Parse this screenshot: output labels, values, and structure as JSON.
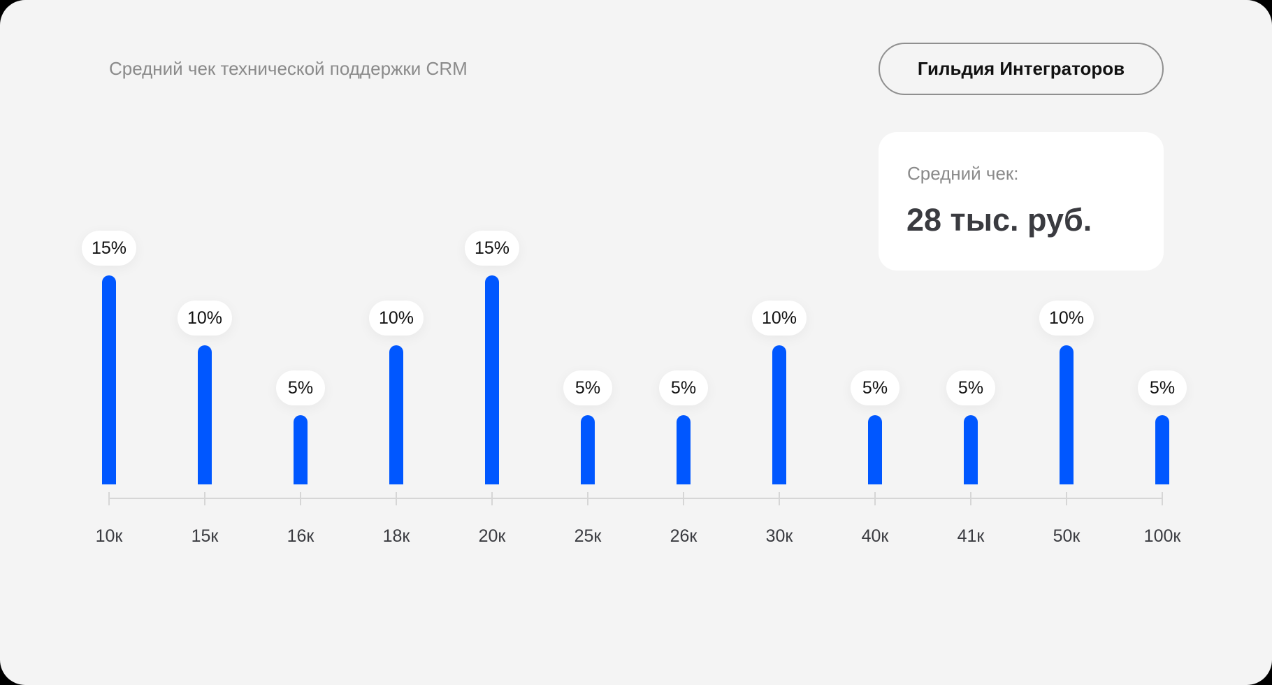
{
  "header": {
    "title": "Средний чек технической поддержки CRM",
    "brand_button_label": "Гильдия Интеграторов"
  },
  "summary_card": {
    "label": "Средний чек:",
    "value": "28 тыс. руб."
  },
  "colors": {
    "background": "#f4f4f4",
    "bar": "#0057ff",
    "axis": "#d6d6d6",
    "label_text": "#3a3b40",
    "muted_text": "#8a8a8a"
  },
  "chart_data": {
    "type": "bar",
    "title": "Средний чек технической поддержки CRM",
    "xlabel": "",
    "ylabel": "",
    "categories": [
      "10к",
      "15к",
      "16к",
      "18к",
      "20к",
      "25к",
      "26к",
      "30к",
      "40к",
      "41к",
      "50к",
      "100к"
    ],
    "values": [
      15,
      10,
      5,
      10,
      15,
      5,
      5,
      10,
      5,
      5,
      10,
      5
    ],
    "value_labels": [
      "15%",
      "10%",
      "5%",
      "10%",
      "15%",
      "5%",
      "5%",
      "10%",
      "5%",
      "5%",
      "10%",
      "5%"
    ],
    "unit": "%",
    "ylim": [
      0,
      15
    ],
    "grid": false,
    "legend": null,
    "annotation": {
      "label": "Средний чек:",
      "value": "28 тыс. руб."
    }
  }
}
